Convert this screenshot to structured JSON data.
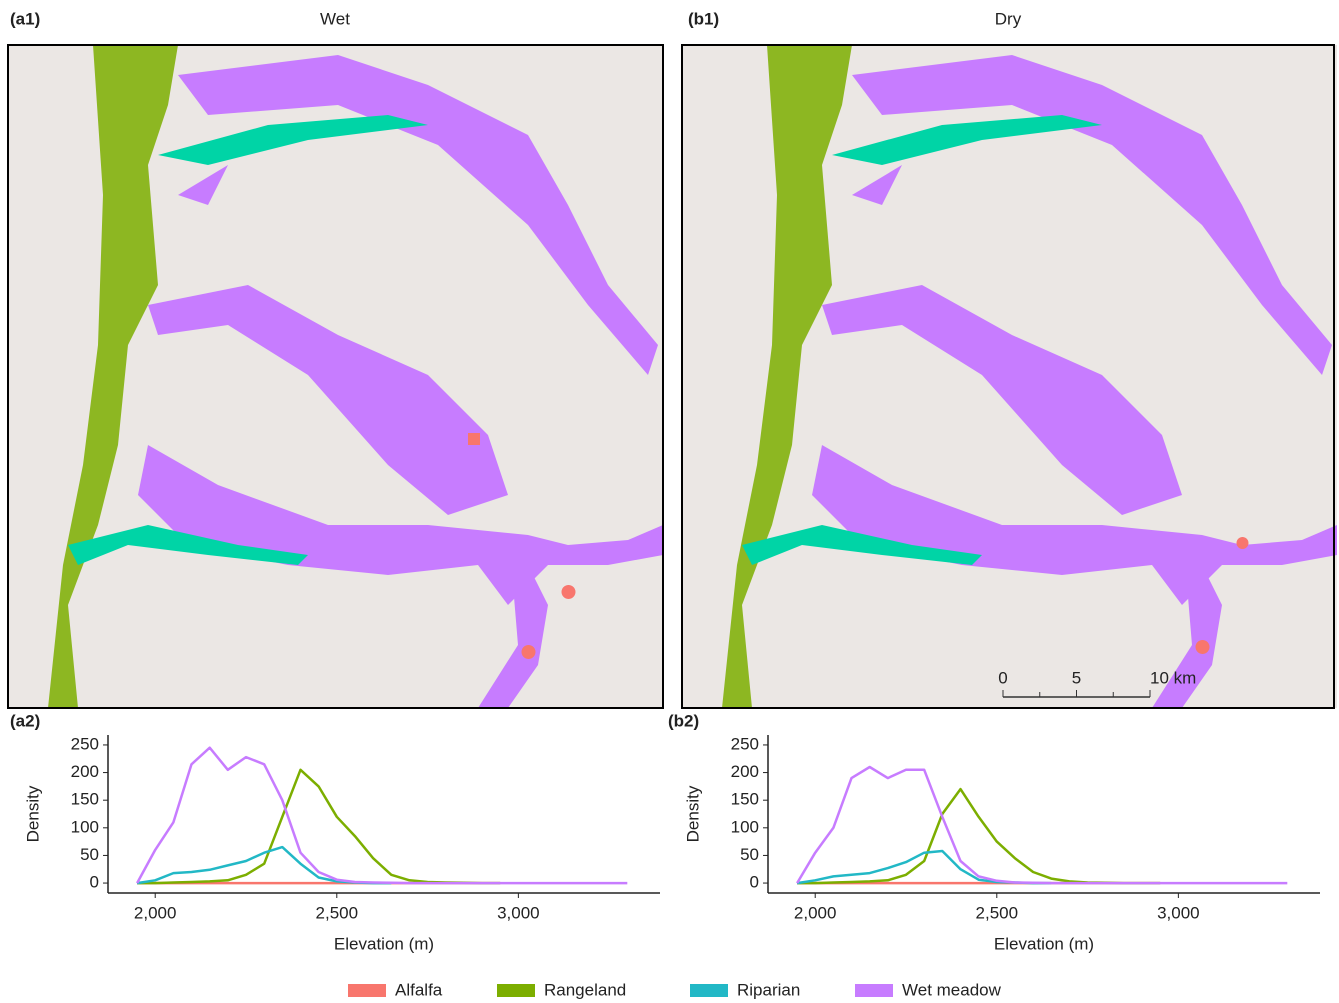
{
  "panels": [
    {
      "label": "(a1)",
      "title": "Wet"
    },
    {
      "label": "(b1)",
      "title": "Dry"
    }
  ],
  "scale_bar": {
    "ticks": [
      0,
      5,
      {
        "value": 10,
        "label": "10 km"
      }
    ]
  },
  "chart_data": [
    {
      "type": "line",
      "panel_label": "(a2)",
      "xlabel": "Elevation (m)",
      "ylabel": "Density",
      "x": [
        1950,
        2000,
        2050,
        2100,
        2150,
        2200,
        2250,
        2300,
        2350,
        2400,
        2450,
        2500,
        2550,
        2600,
        2650,
        2700,
        2750,
        2800,
        2850,
        2900,
        2950,
        3000,
        3050,
        3100,
        3150,
        3200,
        3250,
        3300
      ],
      "xlim": [
        1870,
        3390
      ],
      "xticks": [
        {
          "value": 2000,
          "label": "2,000"
        },
        {
          "value": 2500,
          "label": "2,500"
        },
        {
          "value": 3000,
          "label": "3,000"
        }
      ],
      "ylim": [
        -18,
        268
      ],
      "yticks": [
        0,
        50,
        100,
        150,
        200,
        250
      ],
      "series": [
        {
          "name": "Alfalfa",
          "color": "#f8766d",
          "values": [
            0,
            0,
            0,
            0,
            0,
            0,
            0,
            0,
            0,
            0,
            0,
            0,
            0,
            0,
            0,
            0,
            0,
            0,
            0,
            0,
            0,
            null,
            null,
            null,
            null,
            null,
            null,
            null
          ]
        },
        {
          "name": "Rangeland",
          "color": "#7cae00",
          "values": [
            0,
            0,
            1,
            2,
            3,
            5,
            15,
            35,
            120,
            205,
            175,
            120,
            85,
            45,
            15,
            5,
            2,
            1,
            0.5,
            0,
            0,
            null,
            null,
            null,
            null,
            null,
            null,
            null
          ]
        },
        {
          "name": "Riparian",
          "color": "#22b8c6",
          "values": [
            0,
            5,
            18,
            20,
            24,
            32,
            40,
            55,
            65,
            35,
            10,
            3,
            1,
            0,
            0,
            null,
            null,
            null,
            null,
            null,
            null,
            null,
            null,
            null,
            null,
            null,
            null,
            null
          ]
        },
        {
          "name": "Wet meadow",
          "color": "#c77cff",
          "values": [
            0,
            60,
            110,
            215,
            245,
            205,
            228,
            215,
            150,
            55,
            20,
            6,
            2,
            1,
            0.5,
            0,
            0,
            0,
            0,
            0,
            0,
            0,
            0,
            0,
            0,
            0,
            0,
            0
          ]
        }
      ]
    },
    {
      "type": "line",
      "panel_label": "(b2)",
      "xlabel": "Elevation (m)",
      "ylabel": "Density",
      "x": [
        1950,
        2000,
        2050,
        2100,
        2150,
        2200,
        2250,
        2300,
        2350,
        2400,
        2450,
        2500,
        2550,
        2600,
        2650,
        2700,
        2750,
        2800,
        2850,
        2900,
        2950,
        3000,
        3050,
        3100,
        3150,
        3200,
        3250,
        3300
      ],
      "xlim": [
        1870,
        3390
      ],
      "xticks": [
        {
          "value": 2000,
          "label": "2,000"
        },
        {
          "value": 2500,
          "label": "2,500"
        },
        {
          "value": 3000,
          "label": "3,000"
        }
      ],
      "ylim": [
        -18,
        268
      ],
      "yticks": [
        0,
        50,
        100,
        150,
        200,
        250
      ],
      "series": [
        {
          "name": "Alfalfa",
          "color": "#f8766d",
          "values": [
            0,
            0,
            0,
            0,
            0,
            0,
            0,
            0,
            0,
            0,
            0,
            0,
            0,
            0,
            0,
            0,
            0,
            0,
            0,
            0,
            0,
            null,
            null,
            null,
            null,
            null,
            null,
            null
          ]
        },
        {
          "name": "Rangeland",
          "color": "#7cae00",
          "values": [
            0,
            0,
            1,
            2,
            3,
            5,
            15,
            40,
            125,
            170,
            120,
            75,
            45,
            20,
            8,
            3,
            1,
            0.5,
            0,
            0,
            0,
            null,
            null,
            null,
            null,
            null,
            null,
            null
          ]
        },
        {
          "name": "Riparian",
          "color": "#22b8c6",
          "values": [
            0,
            5,
            12,
            15,
            18,
            27,
            38,
            55,
            58,
            25,
            6,
            2,
            1,
            0,
            0,
            null,
            null,
            null,
            null,
            null,
            null,
            null,
            null,
            null,
            null,
            null,
            null,
            null
          ]
        },
        {
          "name": "Wet meadow",
          "color": "#c77cff",
          "values": [
            0,
            55,
            100,
            190,
            210,
            190,
            205,
            205,
            120,
            40,
            12,
            4,
            1,
            0.5,
            0,
            0,
            0,
            0,
            0,
            0,
            0,
            0,
            0,
            0,
            0,
            0,
            0,
            0
          ]
        }
      ]
    }
  ]
}
